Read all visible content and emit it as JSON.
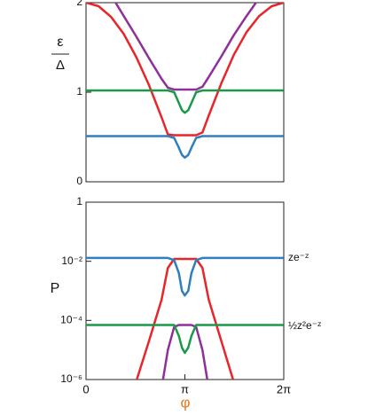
{
  "chart_data": [
    {
      "type": "line",
      "ylabel_top": "ε",
      "ylabel_bottom": "Δ",
      "x": [
        0,
        0.4,
        0.8,
        1.2,
        1.6,
        2.0,
        2.4,
        2.6,
        2.8,
        2.95,
        3.05,
        3.14,
        3.25,
        3.35,
        3.5,
        3.7,
        3.9,
        4.3,
        4.7,
        5.1,
        5.5,
        5.9,
        6.28
      ],
      "series": [
        {
          "color": "#e8252a",
          "values": [
            2,
            1.96,
            1.84,
            1.65,
            1.39,
            1.08,
            0.72,
            0.53,
            0.52,
            0.52,
            0.52,
            0.52,
            0.52,
            0.52,
            0.52,
            0.55,
            0.74,
            1.1,
            1.42,
            1.67,
            1.85,
            1.96,
            2
          ]
        },
        {
          "color": "#8e2f9a",
          "values": [
            null,
            null,
            2.08,
            1.85,
            1.62,
            1.38,
            1.15,
            1.05,
            1.03,
            1.03,
            1.03,
            1.03,
            1.03,
            1.03,
            1.03,
            1.06,
            1.17,
            1.4,
            1.64,
            1.85,
            2.05,
            null,
            null
          ]
        },
        {
          "color": "#1a9a48",
          "values": [
            1.02,
            1.02,
            1.02,
            1.02,
            1.02,
            1.02,
            1.02,
            1.02,
            1.0,
            0.88,
            0.8,
            0.77,
            0.8,
            0.88,
            1.0,
            1.02,
            1.02,
            1.02,
            1.02,
            1.02,
            1.02,
            1.02,
            1.02
          ]
        },
        {
          "color": "#2f7fc0",
          "values": [
            0.51,
            0.51,
            0.51,
            0.51,
            0.51,
            0.51,
            0.51,
            0.51,
            0.49,
            0.38,
            0.3,
            0.27,
            0.3,
            0.38,
            0.49,
            0.51,
            0.51,
            0.51,
            0.51,
            0.51,
            0.51,
            0.51,
            0.51
          ]
        }
      ],
      "xlim": [
        0,
        6.28319
      ],
      "ylim": [
        0,
        2
      ],
      "yticks": [
        0,
        1,
        2
      ]
    },
    {
      "type": "line",
      "ylabel": "P",
      "xlabel": "φ",
      "log_y": true,
      "annotations": [
        "ze⁻ᶻ",
        "½z²e⁻ᶻ"
      ],
      "x": [
        0,
        0.4,
        0.8,
        1.2,
        1.6,
        2.0,
        2.4,
        2.6,
        2.8,
        2.95,
        3.05,
        3.14,
        3.25,
        3.35,
        3.5,
        3.7,
        3.9,
        4.3,
        4.7,
        5.1,
        5.5,
        5.9,
        6.28
      ],
      "series": [
        {
          "color": "#e8252a",
          "values": [
            null,
            null,
            null,
            null,
            9e-07,
            2e-05,
            0.0005,
            0.006,
            0.012,
            0.012,
            0.012,
            0.012,
            0.012,
            0.012,
            0.012,
            0.006,
            0.0005,
            2e-05,
            8e-07,
            null,
            null,
            null,
            null
          ]
        },
        {
          "color": "#8e2f9a",
          "values": [
            null,
            null,
            null,
            null,
            null,
            null,
            5e-07,
            1e-05,
            6e-05,
            7e-05,
            7e-05,
            7e-05,
            7e-05,
            7e-05,
            6e-05,
            1e-05,
            5e-07,
            null,
            null,
            null,
            null,
            null,
            null
          ]
        },
        {
          "color": "#1a9a48",
          "values": [
            7e-05,
            7e-05,
            7e-05,
            7e-05,
            7e-05,
            7e-05,
            7e-05,
            7e-05,
            7e-05,
            3e-05,
            1.2e-05,
            8e-06,
            1.2e-05,
            3e-05,
            7e-05,
            7e-05,
            7e-05,
            7e-05,
            7e-05,
            7e-05,
            7e-05,
            7e-05,
            7e-05
          ]
        },
        {
          "color": "#2f7fc0",
          "values": [
            0.013,
            0.013,
            0.013,
            0.013,
            0.013,
            0.013,
            0.013,
            0.013,
            0.011,
            0.004,
            0.001,
            0.0007,
            0.001,
            0.004,
            0.011,
            0.013,
            0.013,
            0.013,
            0.013,
            0.013,
            0.013,
            0.013,
            0.013
          ]
        }
      ],
      "xlim": [
        0,
        6.28319
      ],
      "ylim": [
        1e-06,
        1
      ],
      "xticks": [
        0,
        {
          "value": 3.14159,
          "label": "π"
        },
        {
          "value": 6.28319,
          "label": "2π"
        }
      ],
      "yticks": [
        {
          "value": 1e-06,
          "label": "10⁻⁶"
        },
        {
          "value": 0.0001,
          "label": "10⁻⁴"
        },
        {
          "value": 0.01,
          "label": "10⁻²"
        },
        1
      ]
    }
  ]
}
